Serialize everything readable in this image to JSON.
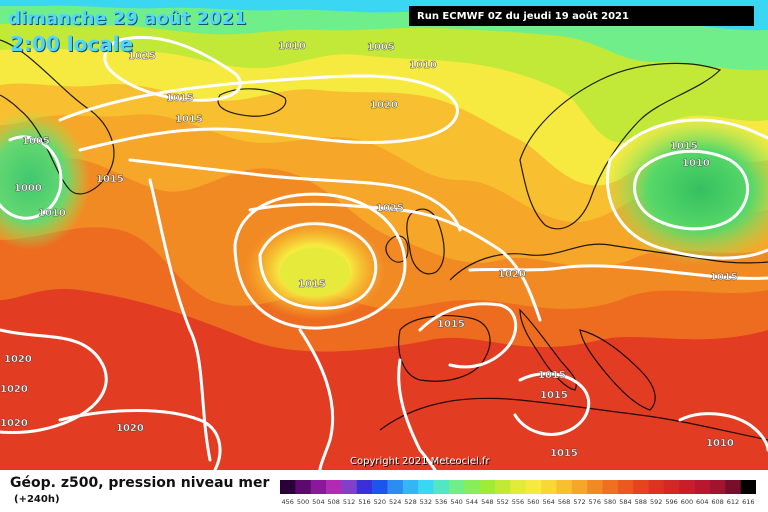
{
  "header": {
    "date": "dimanche 29 août 2021",
    "time": "2:00 locale",
    "run": "Run ECMWF 0Z du jeudi 19 août 2021"
  },
  "copyright": "Copyright 2021 Meteociel.fr",
  "legend": {
    "title": "Géop. z500, pression niveau mer",
    "subtitle": "(+240h)",
    "ticks": [
      "456",
      "500",
      "504",
      "508",
      "512",
      "516",
      "520",
      "524",
      "528",
      "532",
      "536",
      "540",
      "544",
      "548",
      "552",
      "556",
      "560",
      "564",
      "568",
      "572",
      "576",
      "580",
      "584",
      "588",
      "592",
      "596",
      "600",
      "604",
      "608",
      "612",
      "616"
    ],
    "colors": [
      "#2a0038",
      "#5c0a6e",
      "#8a189a",
      "#b02ab4",
      "#8040c8",
      "#3a30d8",
      "#1d55ea",
      "#2b8cf2",
      "#34b6f6",
      "#3ad6f2",
      "#52e6c4",
      "#70ee8a",
      "#86ee58",
      "#a0ea3a",
      "#c2e838",
      "#e2ea3a",
      "#f6ea40",
      "#f8d838",
      "#f8c030",
      "#f6a628",
      "#f28a24",
      "#ee7020",
      "#ea5a1e",
      "#e4441e",
      "#dc3422",
      "#d22826",
      "#c81e2a",
      "#b8182e",
      "#a01430",
      "#7a0e2a",
      "#000000"
    ]
  },
  "pressure_labels": [
    {
      "text": "1025"
    },
    {
      "text": "1010"
    },
    {
      "text": "1005"
    },
    {
      "text": "1010"
    },
    {
      "text": "1015"
    },
    {
      "text": "1015"
    },
    {
      "text": "1020"
    },
    {
      "text": "1005"
    },
    {
      "text": "1015"
    },
    {
      "text": "1000"
    },
    {
      "text": "1010"
    },
    {
      "text": "1015"
    },
    {
      "text": "1010"
    },
    {
      "text": "1025"
    },
    {
      "text": "1015"
    },
    {
      "text": "1020"
    },
    {
      "text": "1015"
    },
    {
      "text": "1015"
    },
    {
      "text": "1020"
    },
    {
      "text": "1020"
    },
    {
      "text": "1020"
    },
    {
      "text": "1015"
    },
    {
      "text": "1015"
    },
    {
      "text": "1020"
    },
    {
      "text": "1015"
    },
    {
      "text": "1010"
    }
  ]
}
